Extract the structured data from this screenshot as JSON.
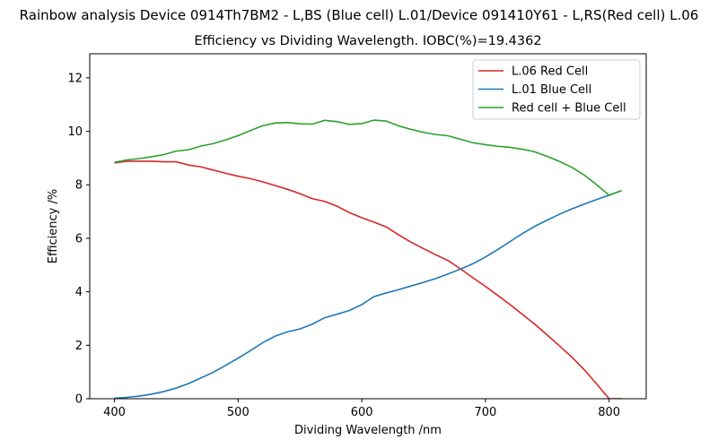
{
  "suptitle": "Rainbow analysis Device 0914Th7BM2 - L,BS (Blue cell) L.01/Device 091410Y61 - L,RS(Red cell) L.06",
  "chart_data": {
    "type": "line",
    "title": "Efficiency vs Dividing Wavelength. IOBC(%)=19.4362",
    "xlabel": "Dividing Wavelength /nm",
    "ylabel": "Efficiency /%",
    "xlim": [
      380,
      830
    ],
    "ylim": [
      0,
      12.9
    ],
    "xticks": [
      400,
      500,
      600,
      700,
      800
    ],
    "yticks": [
      0,
      2,
      4,
      6,
      8,
      10,
      12
    ],
    "legend_position": "top-right",
    "grid": false,
    "series": [
      {
        "name": "L.06 Red Cell",
        "color": "#d62728",
        "x": [
          400,
          410,
          420,
          430,
          440,
          450,
          460,
          470,
          480,
          490,
          500,
          510,
          520,
          530,
          540,
          550,
          560,
          570,
          580,
          590,
          600,
          610,
          620,
          630,
          640,
          650,
          660,
          670,
          680,
          690,
          700,
          710,
          720,
          730,
          740,
          750,
          760,
          770,
          780,
          790,
          800,
          810
        ],
        "y": [
          8.82,
          8.88,
          8.88,
          8.88,
          8.86,
          8.86,
          8.74,
          8.67,
          8.55,
          8.43,
          8.32,
          8.23,
          8.11,
          7.97,
          7.83,
          7.67,
          7.48,
          7.38,
          7.2,
          6.96,
          6.77,
          6.6,
          6.42,
          6.12,
          5.85,
          5.61,
          5.38,
          5.16,
          4.85,
          4.52,
          4.2,
          3.86,
          3.52,
          3.15,
          2.78,
          2.38,
          1.97,
          1.55,
          1.08,
          0.55,
          0.0,
          0.0
        ]
      },
      {
        "name": "L.01 Blue Cell",
        "color": "#1f77b4",
        "x": [
          400,
          410,
          420,
          430,
          440,
          450,
          460,
          470,
          480,
          490,
          500,
          510,
          520,
          530,
          540,
          550,
          560,
          570,
          580,
          590,
          600,
          610,
          620,
          630,
          640,
          650,
          660,
          670,
          680,
          690,
          700,
          710,
          720,
          730,
          740,
          750,
          760,
          770,
          780,
          790,
          800,
          810
        ],
        "y": [
          0.02,
          0.05,
          0.1,
          0.17,
          0.27,
          0.4,
          0.57,
          0.78,
          0.99,
          1.25,
          1.52,
          1.8,
          2.1,
          2.34,
          2.5,
          2.61,
          2.79,
          3.03,
          3.16,
          3.3,
          3.52,
          3.82,
          3.96,
          4.08,
          4.22,
          4.35,
          4.5,
          4.67,
          4.85,
          5.05,
          5.3,
          5.58,
          5.88,
          6.18,
          6.45,
          6.68,
          6.9,
          7.1,
          7.28,
          7.45,
          7.61,
          7.78
        ]
      },
      {
        "name": "Red cell + Blue Cell",
        "color": "#2ca02c",
        "x": [
          400,
          410,
          420,
          430,
          440,
          450,
          460,
          470,
          480,
          490,
          500,
          510,
          520,
          530,
          540,
          550,
          560,
          570,
          580,
          590,
          600,
          610,
          620,
          630,
          640,
          650,
          660,
          670,
          680,
          690,
          700,
          710,
          720,
          730,
          740,
          750,
          760,
          770,
          780,
          790,
          800,
          810
        ],
        "y": [
          8.84,
          8.93,
          8.98,
          9.05,
          9.13,
          9.26,
          9.31,
          9.45,
          9.54,
          9.68,
          9.84,
          10.03,
          10.21,
          10.31,
          10.33,
          10.28,
          10.27,
          10.41,
          10.36,
          10.26,
          10.29,
          10.42,
          10.38,
          10.2,
          10.07,
          9.96,
          9.88,
          9.83,
          9.7,
          9.57,
          9.5,
          9.44,
          9.4,
          9.33,
          9.23,
          9.06,
          8.87,
          8.65,
          8.36,
          8.0,
          7.61,
          7.78
        ]
      }
    ]
  }
}
